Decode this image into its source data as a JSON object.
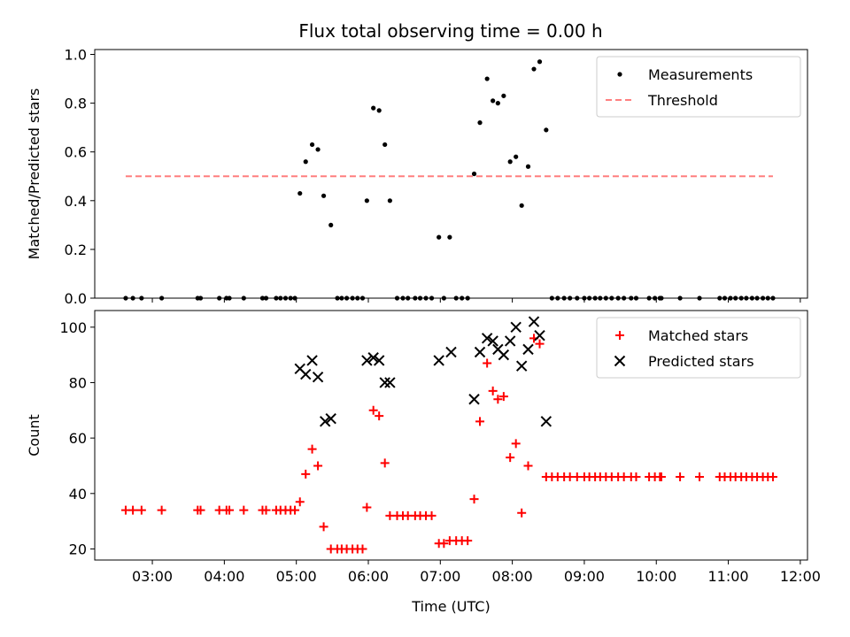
{
  "title": "Flux total observing time = 0.00 h",
  "chart_data": [
    {
      "type": "scatter",
      "title": "Flux total observing time = 0.00 h",
      "xlabel": "",
      "ylabel": "Matched/Predicted stars",
      "xlim": [
        2.2,
        12.1
      ],
      "ylim": [
        0,
        1.02
      ],
      "yticks": [
        0.0,
        0.2,
        0.4,
        0.6,
        0.8,
        1.0
      ],
      "ytick_labels": [
        "0.0",
        "0.2",
        "0.4",
        "0.6",
        "0.8",
        "1.0"
      ],
      "legend_position": "top-right",
      "series": [
        {
          "name": "Measurements",
          "marker": "dot",
          "color": "#000000",
          "x": [
            2.63,
            2.73,
            2.85,
            3.13,
            3.63,
            3.67,
            3.93,
            4.03,
            4.07,
            4.27,
            4.53,
            4.58,
            4.72,
            4.78,
            4.85,
            4.92,
            4.98,
            5.05,
            5.13,
            5.22,
            5.3,
            5.38,
            5.48,
            5.57,
            5.63,
            5.7,
            5.78,
            5.85,
            5.92,
            5.98,
            6.07,
            6.15,
            6.23,
            6.3,
            6.4,
            6.48,
            6.55,
            6.65,
            6.72,
            6.8,
            6.88,
            6.98,
            7.05,
            7.13,
            7.22,
            7.3,
            7.38,
            7.47,
            7.55,
            7.65,
            7.73,
            7.8,
            7.88,
            7.97,
            8.05,
            8.13,
            8.22,
            8.3,
            8.38,
            8.47,
            8.55,
            8.63,
            8.72,
            8.8,
            8.9,
            9.0,
            9.07,
            9.15,
            9.22,
            9.3,
            9.38,
            9.47,
            9.55,
            9.65,
            9.72,
            9.9,
            9.98,
            10.05,
            10.07,
            10.33,
            10.6,
            10.88,
            10.95,
            11.03,
            11.1,
            11.18,
            11.25,
            11.33,
            11.4,
            11.48,
            11.55,
            11.62
          ],
          "y": [
            0,
            0,
            0,
            0,
            0,
            0,
            0,
            0,
            0,
            0,
            0,
            0,
            0,
            0,
            0,
            0,
            0,
            0.43,
            0.56,
            0.63,
            0.61,
            0.42,
            0.3,
            0,
            0,
            0,
            0,
            0,
            0,
            0.4,
            0.78,
            0.77,
            0.63,
            0.4,
            0,
            0,
            0,
            0,
            0,
            0,
            0,
            0.25,
            0,
            0.25,
            0,
            0,
            0,
            0.51,
            0.72,
            0.9,
            0.81,
            0.8,
            0.83,
            0.56,
            0.58,
            0.38,
            0.54,
            0.94,
            0.97,
            0.69,
            0,
            0,
            0,
            0,
            0,
            0,
            0,
            0,
            0,
            0,
            0,
            0,
            0,
            0,
            0,
            0,
            0,
            0,
            0,
            0,
            0,
            0,
            0,
            0,
            0,
            0,
            0,
            0,
            0,
            0,
            0,
            0
          ]
        },
        {
          "name": "Threshold",
          "type": "line",
          "dash": "dashed",
          "color": "#ff7f7f",
          "x": [
            2.63,
            11.62
          ],
          "y": [
            0.5,
            0.5
          ]
        }
      ]
    },
    {
      "type": "scatter",
      "title": "",
      "xlabel": "Time (UTC)",
      "ylabel": "Count",
      "xlim": [
        2.2,
        12.1
      ],
      "ylim": [
        16,
        106
      ],
      "yticks": [
        20,
        40,
        60,
        80,
        100
      ],
      "ytick_labels": [
        "20",
        "40",
        "60",
        "80",
        "100"
      ],
      "xticks": [
        3,
        4,
        5,
        6,
        7,
        8,
        9,
        10,
        11,
        12
      ],
      "xtick_labels": [
        "03:00",
        "04:00",
        "05:00",
        "06:00",
        "07:00",
        "08:00",
        "09:00",
        "10:00",
        "11:00",
        "12:00"
      ],
      "legend_position": "top-right",
      "series": [
        {
          "name": "Matched stars",
          "marker": "plus",
          "color": "#ff0000",
          "x": [
            2.63,
            2.73,
            2.85,
            3.13,
            3.63,
            3.67,
            3.93,
            4.03,
            4.07,
            4.27,
            4.53,
            4.58,
            4.72,
            4.78,
            4.85,
            4.92,
            4.98,
            5.05,
            5.13,
            5.22,
            5.3,
            5.38,
            5.48,
            5.57,
            5.63,
            5.7,
            5.78,
            5.85,
            5.92,
            5.98,
            6.07,
            6.15,
            6.23,
            6.3,
            6.4,
            6.48,
            6.55,
            6.65,
            6.72,
            6.8,
            6.88,
            6.98,
            7.05,
            7.13,
            7.22,
            7.3,
            7.38,
            7.47,
            7.55,
            7.65,
            7.73,
            7.8,
            7.88,
            7.97,
            8.05,
            8.13,
            8.22,
            8.3,
            8.38,
            8.47,
            8.55,
            8.63,
            8.72,
            8.8,
            8.9,
            9.0,
            9.07,
            9.15,
            9.22,
            9.3,
            9.38,
            9.47,
            9.55,
            9.65,
            9.72,
            9.9,
            9.98,
            10.05,
            10.07,
            10.33,
            10.6,
            10.88,
            10.95,
            11.03,
            11.1,
            11.18,
            11.25,
            11.33,
            11.4,
            11.48,
            11.55,
            11.62
          ],
          "y": [
            34,
            34,
            34,
            34,
            34,
            34,
            34,
            34,
            34,
            34,
            34,
            34,
            34,
            34,
            34,
            34,
            34,
            37,
            47,
            56,
            50,
            28,
            20,
            20,
            20,
            20,
            20,
            20,
            20,
            35,
            70,
            68,
            51,
            32,
            32,
            32,
            32,
            32,
            32,
            32,
            32,
            22,
            22,
            23,
            23,
            23,
            23,
            38,
            66,
            87,
            77,
            74,
            75,
            53,
            58,
            33,
            50,
            96,
            94,
            46,
            46,
            46,
            46,
            46,
            46,
            46,
            46,
            46,
            46,
            46,
            46,
            46,
            46,
            46,
            46,
            46,
            46,
            46,
            46,
            46,
            46,
            46,
            46,
            46,
            46,
            46,
            46,
            46,
            46,
            46,
            46,
            46
          ]
        },
        {
          "name": "Predicted stars",
          "marker": "x",
          "color": "#000000",
          "x": [
            5.05,
            5.13,
            5.22,
            5.3,
            5.4,
            5.48,
            5.98,
            6.07,
            6.15,
            6.23,
            6.3,
            6.98,
            7.15,
            7.47,
            7.55,
            7.65,
            7.73,
            7.8,
            7.88,
            7.97,
            8.05,
            8.13,
            8.22,
            8.3,
            8.38,
            8.47
          ],
          "y": [
            85,
            83,
            88,
            82,
            66,
            67,
            88,
            89,
            88,
            80,
            80,
            88,
            91,
            74,
            91,
            96,
            95,
            92,
            90,
            95,
            100,
            86,
            92,
            102,
            97,
            66
          ]
        }
      ]
    }
  ]
}
